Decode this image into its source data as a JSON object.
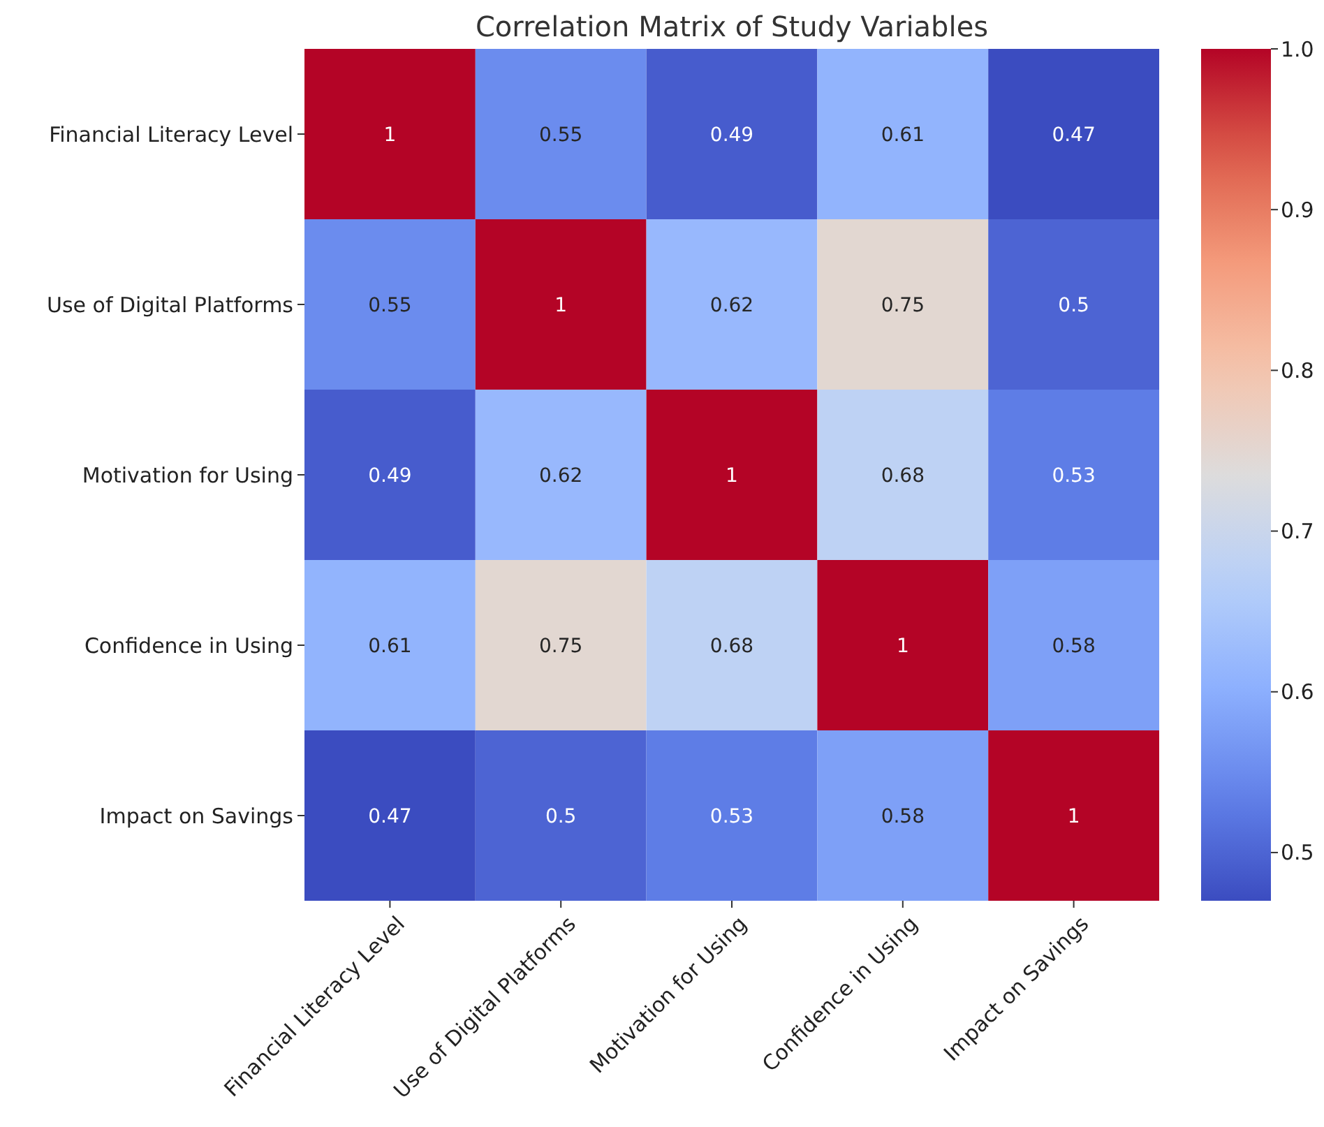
{
  "chart_data": {
    "type": "heatmap",
    "title": "Correlation Matrix of Study Variables",
    "categories": [
      "Financial Literacy Level",
      "Use of Digital Platforms",
      "Motivation for Using",
      "Confidence in Using",
      "Impact on Savings"
    ],
    "y_categories": [
      "Financial Literacy Level",
      "Use of Digital Platforms",
      "Motivation for Using",
      "Confidence in Using",
      "Impact on Savings"
    ],
    "cells": [
      [
        1,
        0.55,
        0.49,
        0.61,
        0.47
      ],
      [
        0.55,
        1,
        0.62,
        0.75,
        0.5
      ],
      [
        0.49,
        0.62,
        1,
        0.68,
        0.53
      ],
      [
        0.61,
        0.75,
        0.68,
        1,
        0.58
      ],
      [
        0.47,
        0.5,
        0.53,
        0.58,
        1
      ]
    ],
    "clim": [
      0.47,
      1.0
    ],
    "cticks": [
      0.5,
      0.6,
      0.7,
      0.8,
      0.9,
      {
        "value": 1,
        "label": "1.0"
      }
    ],
    "data_labels": true
  }
}
